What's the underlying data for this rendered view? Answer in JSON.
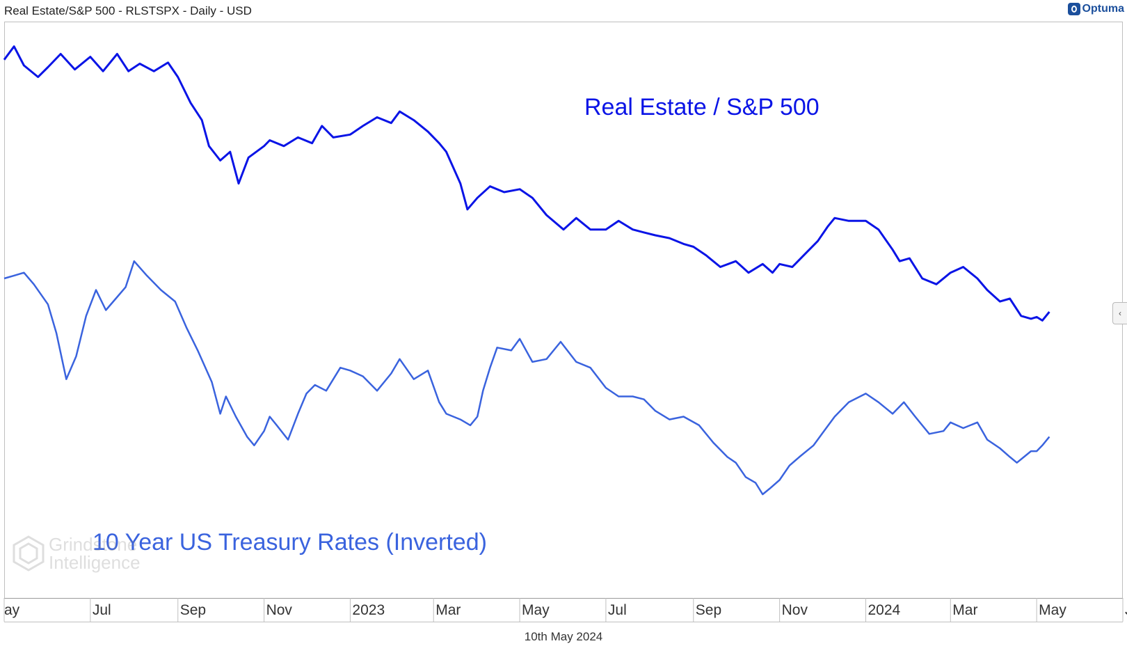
{
  "header": {
    "title": "Real Estate/S&P 500 - RLSTSPX - Daily - USD"
  },
  "brand": {
    "name": "Optuma",
    "color": "#1b4f9c"
  },
  "footer": {
    "date": "10th May 2024"
  },
  "watermark": {
    "line1": "Grindstone",
    "line2": "Intelligence"
  },
  "collapse_tab": {
    "icon": "chevron-left-icon",
    "glyph": "‹"
  },
  "chart_data": {
    "type": "line",
    "x_ticks": [
      "ay",
      "Jul",
      "Sep",
      "Nov",
      "2023",
      "Mar",
      "May",
      "Jul",
      "Sep",
      "Nov",
      "2024",
      "Mar",
      "May",
      "Jul"
    ],
    "x_range": [
      "2022-05-01",
      "2024-07-01"
    ],
    "grid": false,
    "series": [
      {
        "name": "Real Estate / S&P 500",
        "color": "#0a14e6",
        "values": [
          [
            "2022-05-01",
            0.935
          ],
          [
            "2022-05-08",
            0.958
          ],
          [
            "2022-05-15",
            0.925
          ],
          [
            "2022-05-25",
            0.905
          ],
          [
            "2022-06-01",
            0.922
          ],
          [
            "2022-06-10",
            0.945
          ],
          [
            "2022-06-20",
            0.918
          ],
          [
            "2022-07-01",
            0.94
          ],
          [
            "2022-07-10",
            0.915
          ],
          [
            "2022-07-20",
            0.945
          ],
          [
            "2022-07-28",
            0.915
          ],
          [
            "2022-08-05",
            0.928
          ],
          [
            "2022-08-15",
            0.915
          ],
          [
            "2022-08-25",
            0.93
          ],
          [
            "2022-09-01",
            0.905
          ],
          [
            "2022-09-10",
            0.86
          ],
          [
            "2022-09-18",
            0.83
          ],
          [
            "2022-09-23",
            0.785
          ],
          [
            "2022-10-01",
            0.76
          ],
          [
            "2022-10-08",
            0.775
          ],
          [
            "2022-10-14",
            0.72
          ],
          [
            "2022-10-21",
            0.765
          ],
          [
            "2022-11-01",
            0.785
          ],
          [
            "2022-11-05",
            0.795
          ],
          [
            "2022-11-15",
            0.785
          ],
          [
            "2022-11-25",
            0.8
          ],
          [
            "2022-12-05",
            0.79
          ],
          [
            "2022-12-12",
            0.82
          ],
          [
            "2022-12-20",
            0.8
          ],
          [
            "2023-01-01",
            0.805
          ],
          [
            "2023-01-10",
            0.82
          ],
          [
            "2023-01-20",
            0.835
          ],
          [
            "2023-01-30",
            0.825
          ],
          [
            "2023-02-05",
            0.845
          ],
          [
            "2023-02-15",
            0.83
          ],
          [
            "2023-02-25",
            0.81
          ],
          [
            "2023-03-05",
            0.79
          ],
          [
            "2023-03-10",
            0.775
          ],
          [
            "2023-03-20",
            0.72
          ],
          [
            "2023-03-25",
            0.675
          ],
          [
            "2023-04-01",
            0.695
          ],
          [
            "2023-04-10",
            0.715
          ],
          [
            "2023-04-20",
            0.705
          ],
          [
            "2023-05-01",
            0.71
          ],
          [
            "2023-05-10",
            0.695
          ],
          [
            "2023-05-20",
            0.665
          ],
          [
            "2023-06-01",
            0.64
          ],
          [
            "2023-06-10",
            0.66
          ],
          [
            "2023-06-20",
            0.64
          ],
          [
            "2023-07-01",
            0.64
          ],
          [
            "2023-07-10",
            0.655
          ],
          [
            "2023-07-20",
            0.64
          ],
          [
            "2023-07-28",
            0.635
          ],
          [
            "2023-08-05",
            0.63
          ],
          [
            "2023-08-15",
            0.625
          ],
          [
            "2023-08-25",
            0.615
          ],
          [
            "2023-09-01",
            0.61
          ],
          [
            "2023-09-10",
            0.595
          ],
          [
            "2023-09-20",
            0.575
          ],
          [
            "2023-10-01",
            0.585
          ],
          [
            "2023-10-10",
            0.565
          ],
          [
            "2023-10-20",
            0.58
          ],
          [
            "2023-10-27",
            0.565
          ],
          [
            "2023-11-01",
            0.58
          ],
          [
            "2023-11-10",
            0.575
          ],
          [
            "2023-11-20",
            0.6
          ],
          [
            "2023-11-28",
            0.62
          ],
          [
            "2023-12-05",
            0.645
          ],
          [
            "2023-12-10",
            0.66
          ],
          [
            "2023-12-20",
            0.655
          ],
          [
            "2024-01-01",
            0.655
          ],
          [
            "2024-01-10",
            0.64
          ],
          [
            "2024-01-20",
            0.605
          ],
          [
            "2024-01-25",
            0.585
          ],
          [
            "2024-02-01",
            0.59
          ],
          [
            "2024-02-10",
            0.555
          ],
          [
            "2024-02-20",
            0.545
          ],
          [
            "2024-03-01",
            0.565
          ],
          [
            "2024-03-10",
            0.575
          ],
          [
            "2024-03-20",
            0.555
          ],
          [
            "2024-03-27",
            0.535
          ],
          [
            "2024-04-05",
            0.515
          ],
          [
            "2024-04-12",
            0.52
          ],
          [
            "2024-04-20",
            0.49
          ],
          [
            "2024-04-27",
            0.485
          ],
          [
            "2024-05-01",
            0.488
          ],
          [
            "2024-05-05",
            0.482
          ],
          [
            "2024-05-10",
            0.497
          ]
        ]
      },
      {
        "name": "10 Year US Treasury Rates (Inverted)",
        "color": "#3a63de",
        "values": [
          [
            "2022-05-01",
            0.555
          ],
          [
            "2022-05-08",
            0.56
          ],
          [
            "2022-05-15",
            0.565
          ],
          [
            "2022-05-22",
            0.545
          ],
          [
            "2022-06-01",
            0.51
          ],
          [
            "2022-06-07",
            0.46
          ],
          [
            "2022-06-14",
            0.38
          ],
          [
            "2022-06-21",
            0.42
          ],
          [
            "2022-06-28",
            0.49
          ],
          [
            "2022-07-05",
            0.535
          ],
          [
            "2022-07-12",
            0.5
          ],
          [
            "2022-07-19",
            0.52
          ],
          [
            "2022-07-26",
            0.54
          ],
          [
            "2022-08-01",
            0.585
          ],
          [
            "2022-08-10",
            0.56
          ],
          [
            "2022-08-20",
            0.535
          ],
          [
            "2022-08-30",
            0.515
          ],
          [
            "2022-09-07",
            0.47
          ],
          [
            "2022-09-15",
            0.43
          ],
          [
            "2022-09-25",
            0.375
          ],
          [
            "2022-10-01",
            0.32
          ],
          [
            "2022-10-05",
            0.35
          ],
          [
            "2022-10-12",
            0.315
          ],
          [
            "2022-10-20",
            0.28
          ],
          [
            "2022-10-25",
            0.265
          ],
          [
            "2022-11-01",
            0.29
          ],
          [
            "2022-11-05",
            0.315
          ],
          [
            "2022-11-10",
            0.3
          ],
          [
            "2022-11-18",
            0.275
          ],
          [
            "2022-11-25",
            0.32
          ],
          [
            "2022-12-01",
            0.355
          ],
          [
            "2022-12-07",
            0.37
          ],
          [
            "2022-12-15",
            0.36
          ],
          [
            "2022-12-25",
            0.4
          ],
          [
            "2023-01-01",
            0.395
          ],
          [
            "2023-01-10",
            0.385
          ],
          [
            "2023-01-20",
            0.36
          ],
          [
            "2023-01-30",
            0.39
          ],
          [
            "2023-02-05",
            0.415
          ],
          [
            "2023-02-15",
            0.38
          ],
          [
            "2023-02-25",
            0.395
          ],
          [
            "2023-03-05",
            0.34
          ],
          [
            "2023-03-10",
            0.32
          ],
          [
            "2023-03-20",
            0.31
          ],
          [
            "2023-03-27",
            0.3
          ],
          [
            "2023-04-01",
            0.315
          ],
          [
            "2023-04-05",
            0.36
          ],
          [
            "2023-04-10",
            0.4
          ],
          [
            "2023-04-15",
            0.435
          ],
          [
            "2023-04-25",
            0.43
          ],
          [
            "2023-05-01",
            0.45
          ],
          [
            "2023-05-10",
            0.41
          ],
          [
            "2023-05-20",
            0.415
          ],
          [
            "2023-05-30",
            0.445
          ],
          [
            "2023-06-10",
            0.41
          ],
          [
            "2023-06-20",
            0.4
          ],
          [
            "2023-07-01",
            0.365
          ],
          [
            "2023-07-10",
            0.35
          ],
          [
            "2023-07-20",
            0.35
          ],
          [
            "2023-07-28",
            0.345
          ],
          [
            "2023-08-05",
            0.325
          ],
          [
            "2023-08-15",
            0.31
          ],
          [
            "2023-08-25",
            0.315
          ],
          [
            "2023-09-05",
            0.3
          ],
          [
            "2023-09-15",
            0.27
          ],
          [
            "2023-09-25",
            0.245
          ],
          [
            "2023-10-01",
            0.235
          ],
          [
            "2023-10-08",
            0.21
          ],
          [
            "2023-10-15",
            0.2
          ],
          [
            "2023-10-20",
            0.18
          ],
          [
            "2023-10-25",
            0.19
          ],
          [
            "2023-11-01",
            0.205
          ],
          [
            "2023-11-08",
            0.23
          ],
          [
            "2023-11-15",
            0.245
          ],
          [
            "2023-11-25",
            0.265
          ],
          [
            "2023-12-01",
            0.285
          ],
          [
            "2023-12-10",
            0.315
          ],
          [
            "2023-12-20",
            0.34
          ],
          [
            "2024-01-01",
            0.355
          ],
          [
            "2024-01-10",
            0.34
          ],
          [
            "2024-01-20",
            0.32
          ],
          [
            "2024-01-28",
            0.34
          ],
          [
            "2024-02-05",
            0.315
          ],
          [
            "2024-02-15",
            0.285
          ],
          [
            "2024-02-25",
            0.29
          ],
          [
            "2024-03-01",
            0.305
          ],
          [
            "2024-03-10",
            0.295
          ],
          [
            "2024-03-20",
            0.305
          ],
          [
            "2024-03-27",
            0.275
          ],
          [
            "2024-04-05",
            0.26
          ],
          [
            "2024-04-12",
            0.245
          ],
          [
            "2024-04-17",
            0.235
          ],
          [
            "2024-04-22",
            0.245
          ],
          [
            "2024-04-27",
            0.255
          ],
          [
            "2024-05-01",
            0.255
          ],
          [
            "2024-05-05",
            0.265
          ],
          [
            "2024-05-10",
            0.28
          ]
        ]
      }
    ]
  }
}
